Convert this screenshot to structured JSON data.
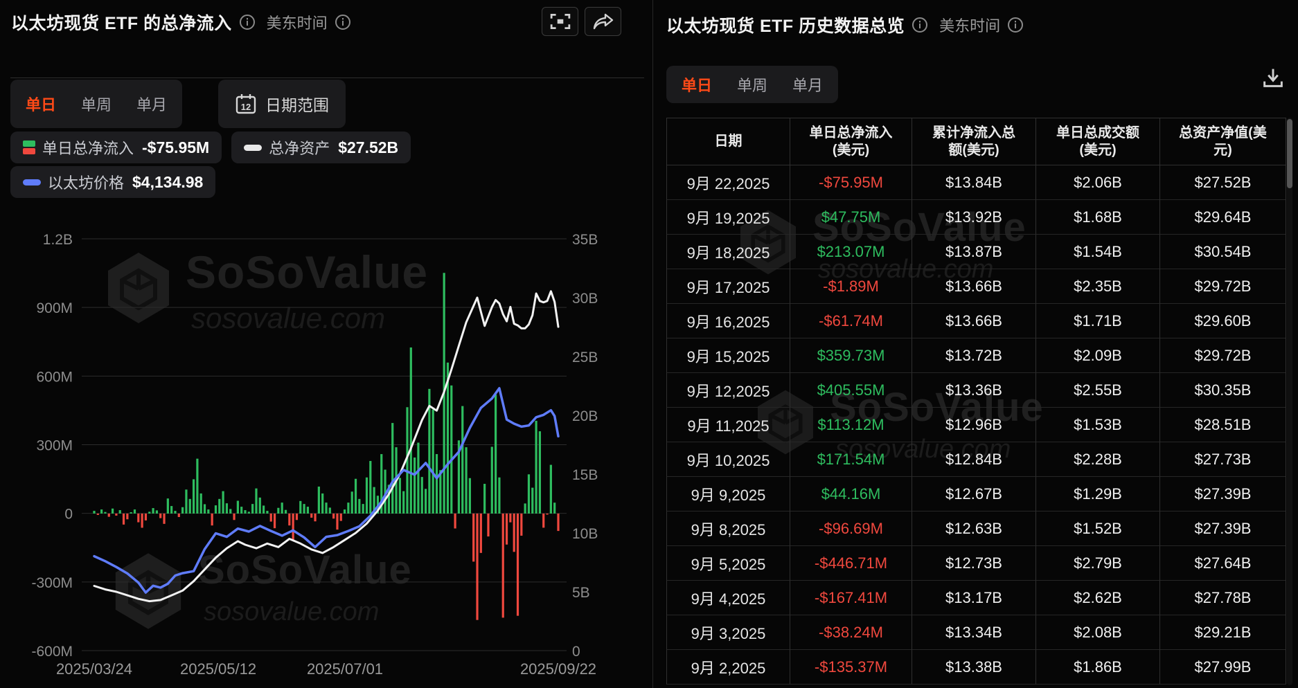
{
  "colors": {
    "accent": "#ff4a17",
    "green": "#2ebd5f",
    "red": "#f0483e",
    "eth_blue": "#5f7cfa",
    "assets_white": "#f2f2f2"
  },
  "watermark": {
    "brand": "SoSoValue",
    "domain": "sosovalue.com"
  },
  "left_panel": {
    "title": "以太坊现货 ETF 的总净流入",
    "timezone_label": "美东时间",
    "tabs": [
      "单日",
      "单周",
      "单月"
    ],
    "active_tab": "单日",
    "date_range_label": "日期范围",
    "legend": [
      {
        "label": "单日总净流入",
        "value": "-$75.95M"
      },
      {
        "label": "总净资产",
        "value": "$27.52B"
      },
      {
        "label": "以太坊价格",
        "value": "$4,134.98"
      }
    ]
  },
  "right_panel": {
    "title": "以太坊现货 ETF 历史数据总览",
    "timezone_label": "美东时间",
    "tabs": [
      "单日",
      "单周",
      "单月"
    ],
    "active_tab": "单日",
    "table": {
      "columns": [
        [
          "日期"
        ],
        [
          "单日总净流入",
          "(美元)"
        ],
        [
          "累计净流入总",
          "额(美元)"
        ],
        [
          "单日总成交额",
          "(美元)"
        ],
        [
          "总资产净值(美",
          "元)"
        ]
      ],
      "rows": [
        {
          "date": "9月 22,2025",
          "inflow": "-$75.95M",
          "cumulative": "$13.84B",
          "volume": "$2.06B",
          "nav": "$27.52B"
        },
        {
          "date": "9月 19,2025",
          "inflow": "$47.75M",
          "cumulative": "$13.92B",
          "volume": "$1.68B",
          "nav": "$29.64B"
        },
        {
          "date": "9月 18,2025",
          "inflow": "$213.07M",
          "cumulative": "$13.87B",
          "volume": "$1.54B",
          "nav": "$30.54B"
        },
        {
          "date": "9月 17,2025",
          "inflow": "-$1.89M",
          "cumulative": "$13.66B",
          "volume": "$2.35B",
          "nav": "$29.72B"
        },
        {
          "date": "9月 16,2025",
          "inflow": "-$61.74M",
          "cumulative": "$13.66B",
          "volume": "$1.71B",
          "nav": "$29.60B"
        },
        {
          "date": "9月 15,2025",
          "inflow": "$359.73M",
          "cumulative": "$13.72B",
          "volume": "$2.09B",
          "nav": "$29.72B"
        },
        {
          "date": "9月 12,2025",
          "inflow": "$405.55M",
          "cumulative": "$13.36B",
          "volume": "$2.55B",
          "nav": "$30.35B"
        },
        {
          "date": "9月 11,2025",
          "inflow": "$113.12M",
          "cumulative": "$12.96B",
          "volume": "$1.53B",
          "nav": "$28.51B"
        },
        {
          "date": "9月 10,2025",
          "inflow": "$171.54M",
          "cumulative": "$12.84B",
          "volume": "$2.28B",
          "nav": "$27.73B"
        },
        {
          "date": "9月 9,2025",
          "inflow": "$44.16M",
          "cumulative": "$12.67B",
          "volume": "$1.29B",
          "nav": "$27.39B"
        },
        {
          "date": "9月 8,2025",
          "inflow": "-$96.69M",
          "cumulative": "$12.63B",
          "volume": "$1.52B",
          "nav": "$27.39B"
        },
        {
          "date": "9月 5,2025",
          "inflow": "-$446.71M",
          "cumulative": "$12.73B",
          "volume": "$2.79B",
          "nav": "$27.64B"
        },
        {
          "date": "9月 4,2025",
          "inflow": "-$167.41M",
          "cumulative": "$13.17B",
          "volume": "$2.62B",
          "nav": "$27.78B"
        },
        {
          "date": "9月 3,2025",
          "inflow": "-$38.24M",
          "cumulative": "$13.34B",
          "volume": "$2.08B",
          "nav": "$29.21B"
        },
        {
          "date": "9月 2,2025",
          "inflow": "-$135.37M",
          "cumulative": "$13.38B",
          "volume": "$1.86B",
          "nav": "$27.99B"
        }
      ]
    }
  },
  "chart_data": {
    "type": "combo",
    "title": "以太坊现货 ETF 的总净流入",
    "legend_position": "top-left",
    "grid": true,
    "x_tick_labels": [
      "2025/03/24",
      "2025/05/12",
      "2025/07/01",
      "2025/09/22"
    ],
    "y_left": {
      "labels": [
        "1.2B",
        "900M",
        "600M",
        "300M",
        "0",
        "-300M",
        "-600M"
      ],
      "max_M": 1200,
      "min_M": -600,
      "unit": "USD"
    },
    "y_right": {
      "labels": [
        "35B",
        "30B",
        "25B",
        "20B",
        "15B",
        "10B",
        "5B",
        "0"
      ],
      "max_B": 35,
      "min_B": 0,
      "unit": "USD"
    },
    "series": [
      {
        "name": "单日总净流入",
        "type": "bar",
        "unit": "M USD"
      },
      {
        "name": "总净资产",
        "type": "line",
        "unit": "B USD"
      },
      {
        "name": "以太坊价格",
        "type": "line",
        "unit": "USD"
      }
    ],
    "bars_M": [
      12,
      -6,
      18,
      7,
      -14,
      22,
      -9,
      15,
      -48,
      -25,
      6,
      18,
      -38,
      -62,
      -30,
      8,
      24,
      14,
      -20,
      -45,
      66,
      33,
      12,
      -15,
      28,
      105,
      64,
      150,
      240,
      88,
      41,
      18,
      -52,
      36,
      64,
      98,
      45,
      20,
      -28,
      56,
      30,
      15,
      8,
      42,
      110,
      70,
      35,
      12,
      -35,
      -64,
      25,
      48,
      16,
      -52,
      -115,
      -28,
      55,
      42,
      30,
      -18,
      -34,
      118,
      88,
      48,
      26,
      -22,
      -70,
      -32,
      18,
      48,
      96,
      152,
      64,
      42,
      158,
      230,
      116,
      78,
      260,
      192,
      126,
      396,
      290,
      156,
      98,
      465,
      726,
      245,
      310,
      160,
      108,
      545,
      455,
      260,
      190,
      1052,
      660,
      560,
      -65,
      320,
      470,
      290,
      155,
      -210,
      -465,
      -172,
      130,
      -100,
      292,
      520,
      158,
      -455,
      -135.37,
      -38.24,
      -167.41,
      -446.71,
      -96.69,
      44.16,
      171.54,
      113.12,
      405.55,
      359.73,
      -61.74,
      -1.89,
      213.07,
      47.75,
      -75.95
    ],
    "net_assets_line_B": [
      [
        0,
        5.5
      ],
      [
        3,
        5.2
      ],
      [
        6,
        5.0
      ],
      [
        9,
        4.7
      ],
      [
        12,
        4.4
      ],
      [
        15,
        4.2
      ],
      [
        18,
        4.3
      ],
      [
        21,
        4.7
      ],
      [
        24,
        5.1
      ],
      [
        27,
        5.9
      ],
      [
        30,
        6.9
      ],
      [
        33,
        7.9
      ],
      [
        36,
        8.7
      ],
      [
        39,
        9.3
      ],
      [
        41,
        9.0
      ],
      [
        44,
        8.7
      ],
      [
        47,
        9.1
      ],
      [
        50,
        8.8
      ],
      [
        53,
        9.5
      ],
      [
        56,
        9.1
      ],
      [
        59,
        8.6
      ],
      [
        62,
        8.3
      ],
      [
        65,
        8.8
      ],
      [
        68,
        9.4
      ],
      [
        71,
        10.0
      ],
      [
        74,
        10.8
      ],
      [
        77,
        11.9
      ],
      [
        80,
        13.3
      ],
      [
        83,
        15.0
      ],
      [
        86,
        17.2
      ],
      [
        89,
        19.6
      ],
      [
        91,
        20.8
      ],
      [
        93,
        20.4
      ],
      [
        95,
        22.0
      ],
      [
        97,
        23.9
      ],
      [
        99,
        25.9
      ],
      [
        101,
        27.9
      ],
      [
        103,
        29.3
      ],
      [
        104,
        30.0
      ],
      [
        105,
        28.8
      ],
      [
        106,
        27.6
      ],
      [
        107,
        28.4
      ],
      [
        108,
        29.2
      ],
      [
        109,
        29.8
      ],
      [
        110,
        29.5
      ],
      [
        111,
        28.6
      ],
      [
        112,
        27.99
      ],
      [
        113,
        29.21
      ],
      [
        114,
        27.78
      ],
      [
        115,
        27.64
      ],
      [
        116,
        27.39
      ],
      [
        117,
        27.39
      ],
      [
        118,
        27.73
      ],
      [
        119,
        28.51
      ],
      [
        120,
        30.35
      ],
      [
        121,
        29.72
      ],
      [
        122,
        29.6
      ],
      [
        123,
        29.72
      ],
      [
        124,
        30.54
      ],
      [
        125,
        29.64
      ],
      [
        126,
        27.52
      ]
    ],
    "eth_price_line_USD": [
      [
        0,
        2090
      ],
      [
        3,
        2005
      ],
      [
        6,
        1905
      ],
      [
        9,
        1795
      ],
      [
        12,
        1640
      ],
      [
        14,
        1470
      ],
      [
        16,
        1585
      ],
      [
        18,
        1555
      ],
      [
        20,
        1620
      ],
      [
        22,
        1760
      ],
      [
        24,
        1800
      ],
      [
        27,
        1835
      ],
      [
        30,
        2210
      ],
      [
        33,
        2480
      ],
      [
        36,
        2420
      ],
      [
        39,
        2560
      ],
      [
        42,
        2510
      ],
      [
        45,
        2605
      ],
      [
        48,
        2520
      ],
      [
        51,
        2440
      ],
      [
        54,
        2530
      ],
      [
        57,
        2410
      ],
      [
        60,
        2245
      ],
      [
        63,
        2420
      ],
      [
        66,
        2450
      ],
      [
        69,
        2520
      ],
      [
        72,
        2600
      ],
      [
        75,
        2780
      ],
      [
        78,
        3020
      ],
      [
        81,
        3360
      ],
      [
        84,
        3560
      ],
      [
        87,
        3480
      ],
      [
        90,
        3680
      ],
      [
        93,
        3420
      ],
      [
        96,
        3660
      ],
      [
        99,
        3870
      ],
      [
        102,
        4280
      ],
      [
        105,
        4620
      ],
      [
        108,
        4780
      ],
      [
        110,
        4955
      ],
      [
        112,
        4420
      ],
      [
        114,
        4350
      ],
      [
        116,
        4300
      ],
      [
        118,
        4320
      ],
      [
        120,
        4460
      ],
      [
        122,
        4500
      ],
      [
        124,
        4580
      ],
      [
        125,
        4480
      ],
      [
        126,
        4135
      ]
    ]
  }
}
